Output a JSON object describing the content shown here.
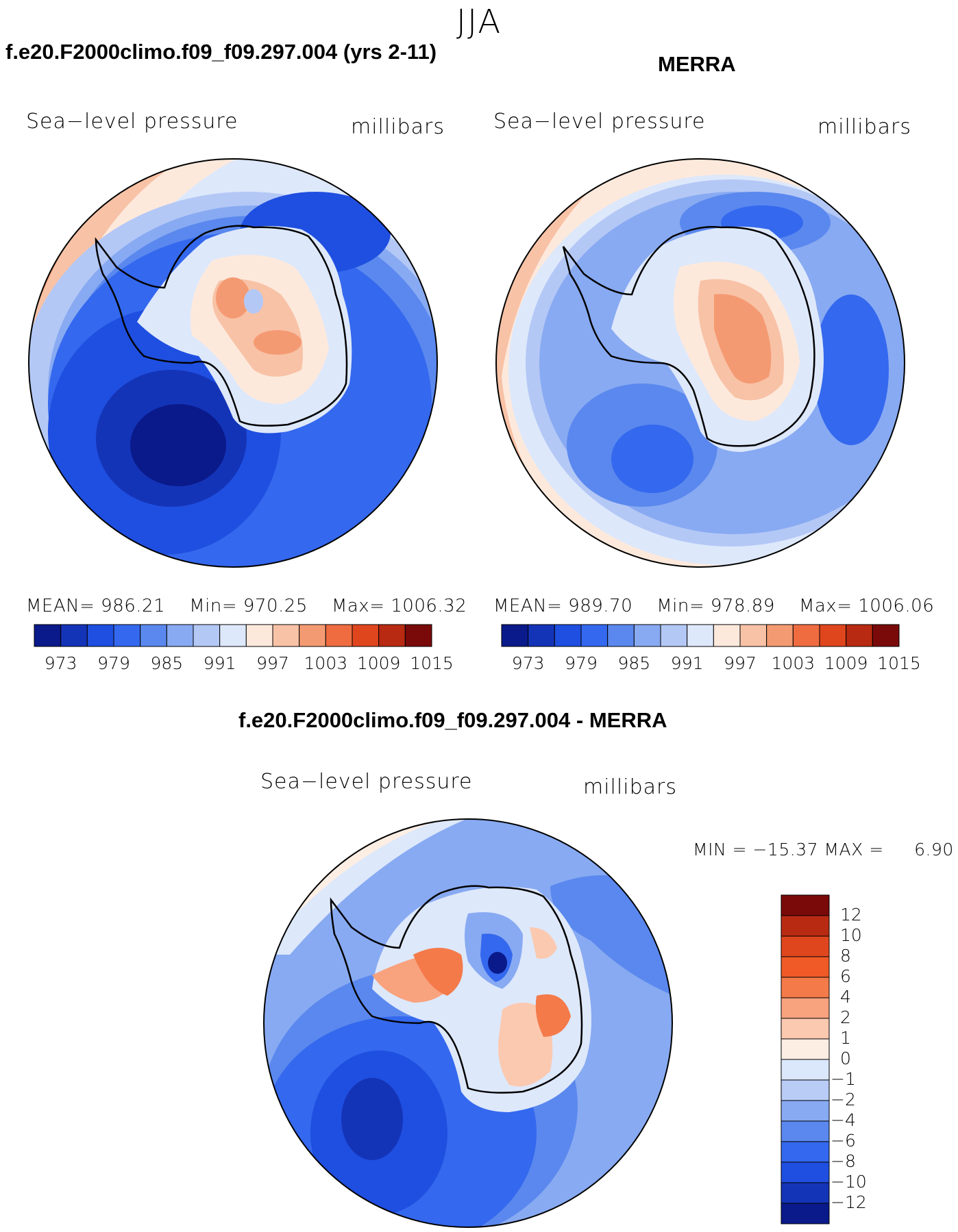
{
  "season": "JJA",
  "panels": {
    "model": {
      "title": "f.e20.F2000climo.f09_f09.297.004 (yrs 2-11)",
      "variable": "Sea−level pressure",
      "units": "millibars",
      "stats": {
        "mean_label": "MEAN=",
        "mean": "986.21",
        "min_label": "Min=",
        "min": "970.25",
        "max_label": "Max=",
        "max": "1006.32"
      }
    },
    "obs": {
      "title": "MERRA",
      "variable": "Sea−level pressure",
      "units": "millibars",
      "stats": {
        "mean_label": "MEAN=",
        "mean": "989.70",
        "min_label": "Min=",
        "min": "978.89",
        "max_label": "Max=",
        "max": "1006.06"
      }
    },
    "diff": {
      "title": "f.e20.F2000climo.f09_f09.297.004 - MERRA",
      "variable": "Sea−level pressure",
      "units": "millibars",
      "stats_text": "MIN = −15.37 MAX =",
      "max_value": "6.90"
    }
  },
  "colorbar_abs": {
    "tick_labels": [
      "973",
      "979",
      "985",
      "991",
      "997",
      "1003",
      "1009",
      "1015"
    ],
    "colors": [
      "#0a1a8a",
      "#1434b8",
      "#1f4fe0",
      "#3468ee",
      "#5a88ee",
      "#88aaf2",
      "#b4c8f6",
      "#dde8fb",
      "#fde9dc",
      "#f8c2a6",
      "#f49a72",
      "#ef6c40",
      "#e0461e",
      "#b82a12",
      "#7a0a0a"
    ]
  },
  "colorbar_diff": {
    "tick_labels": [
      "12",
      "10",
      "8",
      "6",
      "4",
      "2",
      "1",
      "0",
      "−1",
      "−2",
      "−4",
      "−6",
      "−8",
      "−10",
      "−12"
    ],
    "colors": [
      "#7a0a0a",
      "#b82a12",
      "#e0461e",
      "#f05a26",
      "#f47a4a",
      "#f8a27e",
      "#fbc9b0",
      "#fdeee4",
      "#dbe8fb",
      "#b8ccf6",
      "#88aaf2",
      "#5a88ee",
      "#3468ee",
      "#1f4fe0",
      "#1434b8",
      "#0a1a8a"
    ]
  }
}
